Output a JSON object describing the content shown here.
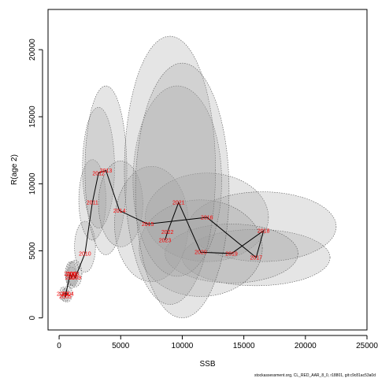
{
  "chart_data": {
    "type": "scatter",
    "xlabel": "SSB",
    "ylabel": "R(age 2)",
    "xlim": [
      -900,
      25000
    ],
    "ylim": [
      -900,
      23000
    ],
    "x_ticks": [
      0,
      5000,
      10000,
      15000,
      20000,
      25000
    ],
    "y_ticks": [
      0,
      5000,
      10000,
      15000,
      20000
    ],
    "footnote": "stockassessment.org, CL_RED_AAR_8_0, r18801, git:c9c81ac53a0d",
    "colors": {
      "ellipse_fill": "#a0a0a0",
      "ellipse_stroke": "#555555",
      "path": "#000000",
      "labels": "#ff0000"
    },
    "points": [
      {
        "year": "2003",
        "ssb": 300,
        "r": 1800,
        "ellipse": {
          "rx": 250,
          "ry": 500,
          "cx": 300,
          "cy": 1800
        }
      },
      {
        "year": "2004",
        "ssb": 700,
        "r": 1800,
        "ellipse": {
          "rx": 350,
          "ry": 600,
          "cx": 700,
          "cy": 1800
        }
      },
      {
        "year": "2005",
        "ssb": 500,
        "r": 1600,
        "ellipse": {
          "rx": 300,
          "ry": 500,
          "cx": 500,
          "cy": 1700
        }
      },
      {
        "year": "2006",
        "ssb": 900,
        "r": 3300,
        "ellipse": {
          "rx": 450,
          "ry": 900,
          "cx": 950,
          "cy": 3300
        }
      },
      {
        "year": "2007",
        "ssb": 1000,
        "r": 3000,
        "ellipse": {
          "rx": 450,
          "ry": 800,
          "cx": 1000,
          "cy": 3000
        }
      },
      {
        "year": "2008",
        "ssb": 1100,
        "r": 3300,
        "ellipse": {
          "rx": 500,
          "ry": 900,
          "cx": 1100,
          "cy": 3300
        }
      },
      {
        "year": "2009",
        "ssb": 1300,
        "r": 3000,
        "ellipse": {
          "rx": 550,
          "ry": 1000,
          "cx": 1300,
          "cy": 3300
        }
      },
      {
        "year": "2010",
        "ssb": 2100,
        "r": 4800,
        "ellipse": {
          "rx": 850,
          "ry": 1900,
          "cx": 2100,
          "cy": 5300
        }
      },
      {
        "year": "2011",
        "ssb": 2700,
        "r": 8600,
        "ellipse": {
          "rx": 1100,
          "ry": 3000,
          "cx": 2700,
          "cy": 8800
        }
      },
      {
        "year": "2012",
        "ssb": 3200,
        "r": 10800,
        "ellipse": {
          "rx": 1300,
          "ry": 4500,
          "cx": 3200,
          "cy": 11200
        }
      },
      {
        "year": "2013",
        "ssb": 3800,
        "r": 11000,
        "ellipse": {
          "rx": 1700,
          "ry": 6300,
          "cx": 3800,
          "cy": 11000
        }
      },
      {
        "year": "2014",
        "ssb": 4900,
        "r": 8000,
        "ellipse": {
          "rx": 1800,
          "ry": 3200,
          "cx": 5000,
          "cy": 8500
        }
      },
      {
        "year": "2015",
        "ssb": 7200,
        "r": 7000,
        "ellipse": {
          "rx": 3000,
          "ry": 4300,
          "cx": 7500,
          "cy": 7000
        }
      },
      {
        "year": "2016",
        "ssb": 12000,
        "r": 7500,
        "ellipse": {
          "rx": 5000,
          "ry": 3300,
          "cx": 12000,
          "cy": 7500
        }
      },
      {
        "year": "2017",
        "ssb": 16000,
        "r": 4500,
        "ellipse": {
          "rx": 6000,
          "ry": 2100,
          "cx": 16000,
          "cy": 4500
        }
      },
      {
        "year": "2018",
        "ssb": 16600,
        "r": 6500,
        "ellipse": {
          "rx": 6000,
          "ry": 2600,
          "cx": 16500,
          "cy": 6800
        }
      },
      {
        "year": "2019",
        "ssb": 14000,
        "r": 4800,
        "ellipse": {
          "rx": 5400,
          "ry": 2200,
          "cx": 14000,
          "cy": 4800
        }
      },
      {
        "year": "2020",
        "ssb": 11500,
        "r": 4900,
        "ellipse": {
          "rx": 5000,
          "ry": 3600,
          "cx": 11500,
          "cy": 5200
        }
      },
      {
        "year": "2021",
        "ssb": 9700,
        "r": 8600,
        "ellipse": {
          "rx": 3600,
          "ry": 7100,
          "cx": 9600,
          "cy": 10200
        }
      },
      {
        "year": "2022",
        "ssb": 8800,
        "r": 6400,
        "ellipse": {
          "rx": 3700,
          "ry": 10000,
          "cx": 9000,
          "cy": 11000
        }
      },
      {
        "year": "2023",
        "ssb": 8600,
        "r": 5800,
        "ellipse": {
          "rx": 3800,
          "ry": 9500,
          "cx": 10000,
          "cy": 9500
        }
      }
    ]
  }
}
